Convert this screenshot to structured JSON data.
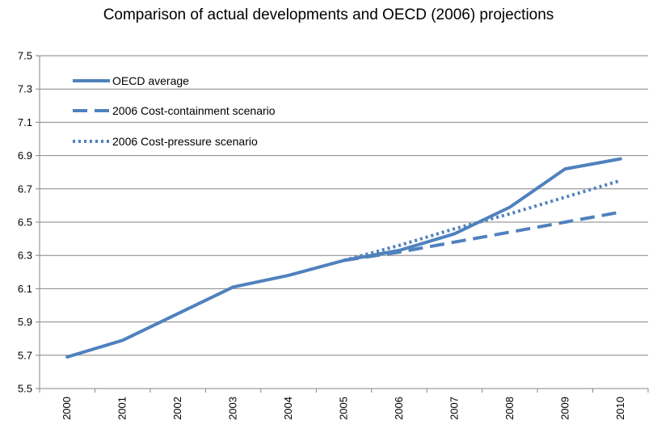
{
  "chart_data": {
    "type": "line",
    "title": "Comparison of actual developments and OECD (2006) projections",
    "xlabel": "",
    "ylabel": "",
    "x": [
      "2000",
      "2001",
      "2002",
      "2003",
      "2004",
      "2005",
      "2006",
      "2007",
      "2008",
      "2009",
      "2010"
    ],
    "ylim": [
      5.5,
      7.5
    ],
    "yticks": [
      "5.5",
      "5.7",
      "5.9",
      "6.1",
      "6.3",
      "6.5",
      "6.7",
      "6.9",
      "7.1",
      "7.3",
      "7.5"
    ],
    "grid": "horizontal",
    "legend_position": "top-left",
    "series": [
      {
        "name": "OECD average",
        "style": "solid",
        "color": "#4F81BD",
        "x": [
          "2000",
          "2001",
          "2002",
          "2003",
          "2004",
          "2005",
          "2006",
          "2007",
          "2008",
          "2009",
          "2010"
        ],
        "values": [
          5.69,
          5.79,
          5.95,
          6.11,
          6.18,
          6.27,
          6.33,
          6.43,
          6.59,
          6.82,
          6.88
        ]
      },
      {
        "name": "2006 Cost-containment scenario",
        "style": "dashed",
        "color": "#4F81BD",
        "x": [
          "2005",
          "2006",
          "2007",
          "2008",
          "2009",
          "2010"
        ],
        "values": [
          6.27,
          6.32,
          6.38,
          6.44,
          6.5,
          6.56
        ]
      },
      {
        "name": "2006 Cost-pressure scenario",
        "style": "dotted",
        "color": "#4F81BD",
        "x": [
          "2005",
          "2006",
          "2007",
          "2008",
          "2009",
          "2010"
        ],
        "values": [
          6.27,
          6.36,
          6.46,
          6.55,
          6.65,
          6.75
        ]
      }
    ]
  }
}
